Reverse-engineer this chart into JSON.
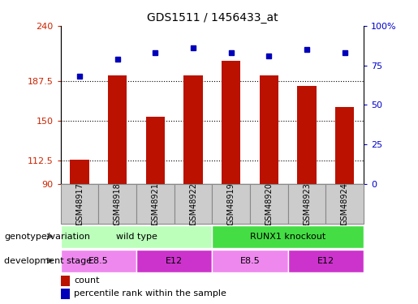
{
  "title": "GDS1511 / 1456433_at",
  "samples": [
    "GSM48917",
    "GSM48918",
    "GSM48921",
    "GSM48922",
    "GSM48919",
    "GSM48920",
    "GSM48923",
    "GSM48924"
  ],
  "counts": [
    113,
    193,
    154,
    193,
    207,
    193,
    183,
    163
  ],
  "percentile_ranks": [
    68,
    79,
    83,
    86,
    83,
    81,
    85,
    83
  ],
  "ylim_left": [
    90,
    240
  ],
  "yticks_left": [
    90,
    112.5,
    150,
    187.5,
    240
  ],
  "ytick_labels_left": [
    "90",
    "112.5",
    "150",
    "187.5",
    "240"
  ],
  "ylim_right": [
    0,
    100
  ],
  "yticks_right": [
    0,
    25,
    50,
    75,
    100
  ],
  "ytick_labels_right": [
    "0",
    "25",
    "50",
    "75",
    "100%"
  ],
  "bar_color": "#bb1100",
  "dot_color": "#0000bb",
  "genotype_groups": [
    {
      "label": "wild type",
      "start": 0,
      "end": 4,
      "color": "#bbffbb"
    },
    {
      "label": "RUNX1 knockout",
      "start": 4,
      "end": 8,
      "color": "#44dd44"
    }
  ],
  "dev_stage_groups": [
    {
      "label": "E8.5",
      "start": 0,
      "end": 2,
      "color": "#ee88ee"
    },
    {
      "label": "E12",
      "start": 2,
      "end": 4,
      "color": "#cc33cc"
    },
    {
      "label": "E8.5",
      "start": 4,
      "end": 6,
      "color": "#ee88ee"
    },
    {
      "label": "E12",
      "start": 6,
      "end": 8,
      "color": "#cc33cc"
    }
  ],
  "xlabel_genotype": "genotype/variation",
  "xlabel_devstage": "development stage",
  "legend_count": "count",
  "legend_percentile": "percentile rank within the sample",
  "tick_color_left": "#cc2200",
  "tick_color_right": "#0000cc",
  "sample_box_color": "#cccccc",
  "sample_box_border": "#888888",
  "bar_width": 0.5
}
